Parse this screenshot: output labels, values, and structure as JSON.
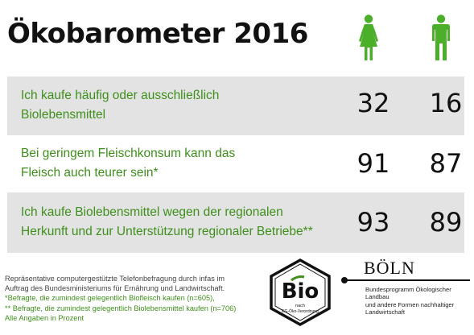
{
  "title": "Ökobarometer 2016",
  "icons": {
    "female": "female-person-icon",
    "male": "male-person-icon"
  },
  "colors": {
    "accent_green": "#3f8f1c",
    "row_shade": "#e3e3e3",
    "icon_green": "#4caf2a"
  },
  "chart_data": {
    "type": "table",
    "title": "Ökobarometer 2016",
    "columns": [
      "female",
      "male"
    ],
    "rows": [
      {
        "label_line1": "Ich kaufe häufig oder ausschließlich",
        "label_line2": "Biolebensmittel",
        "female": 32,
        "male": 16
      },
      {
        "label_line1": "Bei geringem Fleischkonsum kann das",
        "label_line2": "Fleisch auch teurer sein*",
        "female": 91,
        "male": 87
      },
      {
        "label_line1": "Ich kaufe Biolebensmittel wegen der regionalen",
        "label_line2": "Herkunft und zur Unterstützung regionaler Betriebe**",
        "female": 93,
        "male": 89
      }
    ]
  },
  "footnotes": {
    "line1": "Repräsentative computergestützte Telefonbefragung durch infas im",
    "line2": "Auftrag des Bundesministeriums für Ernährung und Landwirtschaft.",
    "line3": "*Befragte, die zumindest gelegentlich Biofleisch kaufen (n=605),",
    "line4": "** Befragte, die zumindest gelegentlich Biolebensmittel kaufen (n=706)",
    "line5": "Alle Angaben in Prozent"
  },
  "bio_logo": {
    "word": "Bio",
    "sub1": "nach",
    "sub2": "EG-Öko-Verordnung"
  },
  "boeln": {
    "name": "BÖLN",
    "line1": "Bundesprogramm Ökologischer Landbau",
    "line2": "und andere Formen nachhaltiger",
    "line3": "Landwirtschaft"
  }
}
